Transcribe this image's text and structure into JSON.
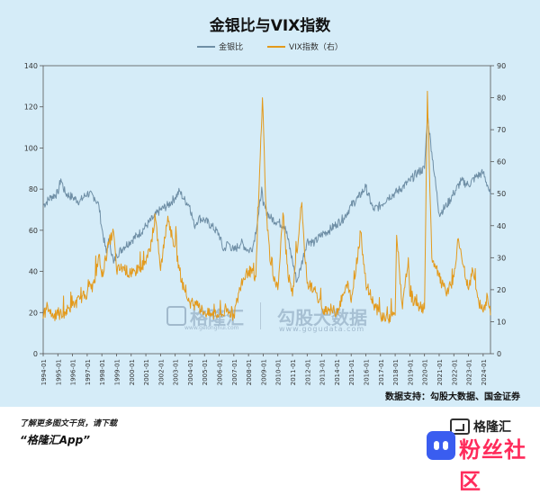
{
  "chart_data": {
    "type": "line",
    "title": "金银比与VIX指数",
    "left_axis": {
      "ylim": [
        0,
        140
      ],
      "ticks": [
        "0",
        "20",
        "40",
        "60",
        "80",
        "100",
        "120",
        "140"
      ]
    },
    "right_axis": {
      "ylim": [
        0,
        90
      ],
      "ticks": [
        "0",
        "10",
        "20",
        "30",
        "40",
        "50",
        "60",
        "70",
        "80",
        "90"
      ]
    },
    "x_tick_labels": [
      "1994-01",
      "1995-01",
      "1996-01",
      "1997-01",
      "1998-01",
      "1999-01",
      "2000-01",
      "2001-01",
      "2002-01",
      "2003-01",
      "2004-01",
      "2005-01",
      "2006-01",
      "2007-01",
      "2008-01",
      "2009-01",
      "2010-01",
      "2011-01",
      "2012-01",
      "2013-01",
      "2014-01",
      "2015-01",
      "2016-01",
      "2017-01",
      "2018-01",
      "2019-01",
      "2020-01",
      "2021-01",
      "2022-01",
      "2023-01",
      "2024-01"
    ],
    "xlim": [
      1994.0,
      2024.5
    ],
    "legend_placement": "top-center",
    "series": [
      {
        "name": "金银比",
        "axis": "left",
        "color": "#6f8fa6",
        "points": [
          [
            1994.0,
            72
          ],
          [
            1994.5,
            76
          ],
          [
            1995.0,
            78
          ],
          [
            1995.2,
            85
          ],
          [
            1995.5,
            78
          ],
          [
            1996.0,
            76
          ],
          [
            1996.5,
            74
          ],
          [
            1997.0,
            78
          ],
          [
            1997.5,
            76
          ],
          [
            1997.8,
            72
          ],
          [
            1998.0,
            61
          ],
          [
            1998.3,
            49
          ],
          [
            1998.5,
            56
          ],
          [
            1998.8,
            44
          ],
          [
            1999.0,
            48
          ],
          [
            1999.5,
            52
          ],
          [
            2000.0,
            55
          ],
          [
            2000.5,
            58
          ],
          [
            2001.0,
            62
          ],
          [
            2001.5,
            66
          ],
          [
            2002.0,
            70
          ],
          [
            2002.5,
            72
          ],
          [
            2003.0,
            76
          ],
          [
            2003.3,
            79
          ],
          [
            2003.6,
            75
          ],
          [
            2004.0,
            72
          ],
          [
            2004.3,
            62
          ],
          [
            2004.6,
            66
          ],
          [
            2005.0,
            65
          ],
          [
            2005.5,
            62
          ],
          [
            2006.0,
            58
          ],
          [
            2006.3,
            50
          ],
          [
            2006.6,
            54
          ],
          [
            2007.0,
            50
          ],
          [
            2007.5,
            54
          ],
          [
            2008.0,
            50
          ],
          [
            2008.3,
            52
          ],
          [
            2008.7,
            68
          ],
          [
            2008.9,
            81
          ],
          [
            2009.0,
            72
          ],
          [
            2009.5,
            66
          ],
          [
            2010.0,
            64
          ],
          [
            2010.5,
            62
          ],
          [
            2011.0,
            45
          ],
          [
            2011.3,
            35
          ],
          [
            2011.6,
            43
          ],
          [
            2012.0,
            55
          ],
          [
            2012.5,
            54
          ],
          [
            2013.0,
            58
          ],
          [
            2013.5,
            60
          ],
          [
            2014.0,
            63
          ],
          [
            2014.5,
            66
          ],
          [
            2015.0,
            72
          ],
          [
            2015.5,
            76
          ],
          [
            2016.0,
            81
          ],
          [
            2016.5,
            70
          ],
          [
            2017.0,
            72
          ],
          [
            2017.5,
            76
          ],
          [
            2018.0,
            78
          ],
          [
            2018.5,
            81
          ],
          [
            2019.0,
            84
          ],
          [
            2019.5,
            88
          ],
          [
            2020.0,
            90
          ],
          [
            2020.2,
            116
          ],
          [
            2020.5,
            98
          ],
          [
            2021.0,
            68
          ],
          [
            2021.5,
            72
          ],
          [
            2022.0,
            78
          ],
          [
            2022.5,
            84
          ],
          [
            2023.0,
            82
          ],
          [
            2023.5,
            86
          ],
          [
            2024.0,
            88
          ],
          [
            2024.3,
            82
          ],
          [
            2024.5,
            77
          ]
        ]
      },
      {
        "name": "VIX指数（右）",
        "axis": "right",
        "color": "#e39a1c",
        "points": [
          [
            1994.0,
            11
          ],
          [
            1994.3,
            15
          ],
          [
            1994.6,
            12
          ],
          [
            1995.0,
            12
          ],
          [
            1995.5,
            13
          ],
          [
            1996.0,
            15
          ],
          [
            1996.5,
            17
          ],
          [
            1997.0,
            19
          ],
          [
            1997.5,
            22
          ],
          [
            1997.8,
            31
          ],
          [
            1998.0,
            24
          ],
          [
            1998.5,
            35
          ],
          [
            1998.8,
            38
          ],
          [
            1999.0,
            26
          ],
          [
            1999.5,
            27
          ],
          [
            2000.0,
            24
          ],
          [
            2000.5,
            27
          ],
          [
            2001.0,
            28
          ],
          [
            2001.7,
            41
          ],
          [
            2002.0,
            26
          ],
          [
            2002.5,
            43
          ],
          [
            2002.8,
            36
          ],
          [
            2003.0,
            34
          ],
          [
            2003.3,
            26
          ],
          [
            2003.6,
            20
          ],
          [
            2004.0,
            16
          ],
          [
            2004.5,
            15
          ],
          [
            2005.0,
            13
          ],
          [
            2005.5,
            12
          ],
          [
            2006.0,
            12
          ],
          [
            2006.5,
            13
          ],
          [
            2007.0,
            12
          ],
          [
            2007.5,
            22
          ],
          [
            2008.0,
            26
          ],
          [
            2008.5,
            24
          ],
          [
            2008.8,
            62
          ],
          [
            2008.95,
            80
          ],
          [
            2009.2,
            45
          ],
          [
            2009.5,
            28
          ],
          [
            2010.0,
            20
          ],
          [
            2010.35,
            44
          ],
          [
            2010.7,
            24
          ],
          [
            2011.0,
            18
          ],
          [
            2011.6,
            46
          ],
          [
            2012.0,
            22
          ],
          [
            2012.5,
            20
          ],
          [
            2013.0,
            14
          ],
          [
            2013.5,
            14
          ],
          [
            2014.0,
            13
          ],
          [
            2014.8,
            22
          ],
          [
            2015.0,
            16
          ],
          [
            2015.65,
            38
          ],
          [
            2016.0,
            22
          ],
          [
            2016.5,
            16
          ],
          [
            2017.0,
            12
          ],
          [
            2017.5,
            11
          ],
          [
            2018.0,
            12
          ],
          [
            2018.1,
            37
          ],
          [
            2018.5,
            14
          ],
          [
            2018.9,
            30
          ],
          [
            2019.0,
            18
          ],
          [
            2019.5,
            15
          ],
          [
            2020.0,
            14
          ],
          [
            2020.2,
            82
          ],
          [
            2020.5,
            30
          ],
          [
            2021.0,
            24
          ],
          [
            2021.5,
            18
          ],
          [
            2022.0,
            24
          ],
          [
            2022.3,
            36
          ],
          [
            2022.6,
            28
          ],
          [
            2023.0,
            20
          ],
          [
            2023.3,
            26
          ],
          [
            2023.7,
            16
          ],
          [
            2024.0,
            13
          ],
          [
            2024.3,
            18
          ],
          [
            2024.5,
            12
          ]
        ]
      }
    ]
  },
  "legend": {
    "series1": "金银比",
    "series2": "VIX指数（右）"
  },
  "source_note": "数据支持：勾股大数据、国金证券",
  "footer": {
    "line1": "了解更多图文干货，请下载",
    "line2": "“格隆汇App”",
    "brand": "格隆汇"
  },
  "watermarks": {
    "gogu_left": "格隆汇",
    "gogu_right": "勾股大数据",
    "gogu_left_url": "www.gelonghui.com",
    "gogu_right_url": "www.gogudata.com",
    "corner_text": "粉丝社区"
  }
}
